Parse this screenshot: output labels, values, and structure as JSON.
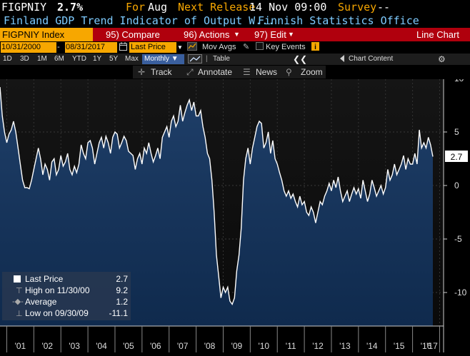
{
  "header": {
    "ticker": "FIGPNIY",
    "last_value": "2.7%",
    "for_label": "For",
    "for_value": "Aug",
    "next_release_label": "Next Release",
    "next_release_value": "14 Nov 09:00",
    "survey_label": "Survey",
    "survey_value": "--",
    "description": "Finland GDP Trend Indicator of Output W...",
    "source": "Finnish Statistics Office"
  },
  "command_bar": {
    "security": "FIGPNIY Index",
    "compare": "95) Compare",
    "actions": "96) Actions",
    "edit": "97) Edit",
    "chart_type": "Line Chart"
  },
  "controls": {
    "start_date": "10/31/2000",
    "end_date": "08/31/2017",
    "field": "Last Price",
    "mov_avgs": "Mov Avgs",
    "key_events": "Key Events"
  },
  "ranges": {
    "items": [
      "1D",
      "3D",
      "1M",
      "6M",
      "YTD",
      "1Y",
      "5Y",
      "Max"
    ],
    "frequency": "Monthly",
    "table": "Table",
    "chart_content": "Chart Content"
  },
  "tools": {
    "track": "Track",
    "annotate": "Annotate",
    "news": "News",
    "zoom": "Zoom"
  },
  "legend": {
    "last_label": "Last Price",
    "last_value": "2.7",
    "high_label": "High on 11/30/00",
    "high_value": "9.2",
    "avg_label": "Average",
    "avg_value": "1.2",
    "low_label": "Low on 09/30/09",
    "low_value": "-11.1"
  },
  "colors": {
    "amber": "#f7a700",
    "command_red": "#b0000d",
    "cyan": "#7ecbff",
    "fill_top": "#1d3b63",
    "fill_bottom": "#0f2a4d"
  },
  "chart_data": {
    "type": "area",
    "ylim": [
      -13,
      11
    ],
    "yticks": [
      10,
      5,
      0,
      -5,
      -10
    ],
    "last_label": "2.7",
    "xticks": [
      "'01",
      "'02",
      "'03",
      "'04",
      "'05",
      "'06",
      "'07",
      "'08",
      "'09",
      "'10",
      "'11",
      "'12",
      "'13",
      "'14",
      "'15",
      "'16",
      "'17"
    ],
    "series": [
      {
        "x_start": "2000-10",
        "values": [
          9.2,
          6.5,
          5.0,
          4.0,
          4.8,
          5.2,
          6.0,
          5.0,
          3.5,
          2.0,
          0.5,
          -0.2,
          -0.2,
          -0.3,
          0.5,
          1.5,
          2.5,
          3.5,
          2.5,
          1.0,
          2.0,
          1.5,
          0.5,
          2.2,
          2.5,
          1.0,
          1.5,
          2.8,
          1.8,
          2.2,
          3.0,
          1.5,
          1.0,
          1.8,
          1.2,
          2.0,
          3.8,
          3.0,
          2.5,
          4.0,
          4.2,
          3.5,
          2.0,
          3.0,
          4.0,
          4.5,
          3.5,
          4.6,
          4.0,
          3.0,
          4.5,
          5.0,
          4.8,
          3.5,
          4.0,
          4.6,
          4.2,
          3.2,
          3.0,
          2.8,
          1.5,
          2.5,
          3.0,
          2.0,
          3.5,
          3.0,
          4.0,
          3.0,
          2.2,
          2.8,
          3.5,
          2.5,
          4.5,
          5.0,
          5.5,
          4.5,
          6.0,
          6.5,
          5.5,
          6.0,
          7.5,
          6.0,
          6.8,
          7.5,
          8.0,
          7.0,
          7.8,
          6.5,
          6.5,
          7.0,
          5.5,
          4.5,
          3.0,
          2.5,
          0.5,
          -2.5,
          -6.5,
          -8.5,
          -10.5,
          -9.5,
          -10.0,
          -9.5,
          -10.8,
          -11.1,
          -10.5,
          -8.0,
          -6.5,
          -4.0,
          0.5,
          2.5,
          3.5,
          2.0,
          3.5,
          4.5,
          5.5,
          6.0,
          5.8,
          3.5,
          4.0,
          5.0,
          3.0,
          4.2,
          2.5,
          2.0,
          1.2,
          0.5,
          -0.5,
          -1.0,
          -0.5,
          -1.2,
          -0.8,
          -1.5,
          -2.0,
          -1.0,
          -1.8,
          -1.5,
          -2.5,
          -2.8,
          -2.0,
          -2.5,
          -3.5,
          -2.5,
          -1.5,
          -1.8,
          -1.0,
          -0.5,
          0.2,
          -0.5,
          0.5,
          -0.2,
          0.8,
          -0.5,
          -1.5,
          -1.0,
          -0.5,
          -1.5,
          -0.8,
          -0.2,
          -0.8,
          -0.3,
          -1.2,
          0.5,
          -0.5,
          -1.5,
          -0.8,
          0.5,
          -0.2,
          -1.0,
          -0.5,
          0.0,
          -0.8,
          -0.2,
          1.5,
          0.5,
          1.0,
          2.0,
          1.0,
          1.5,
          2.0,
          2.8,
          1.5,
          2.5,
          2.0,
          2.0,
          3.0,
          2.0,
          5.2,
          3.5,
          4.0,
          3.5,
          4.5,
          3.8,
          2.7
        ]
      }
    ]
  }
}
